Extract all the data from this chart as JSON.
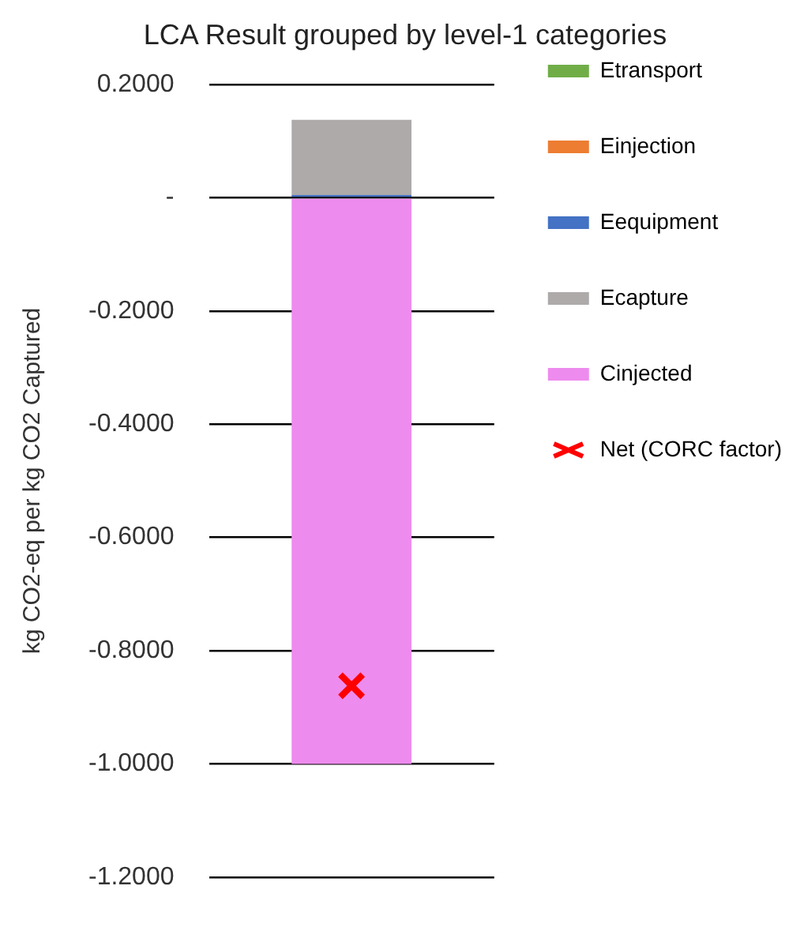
{
  "chart_data": {
    "type": "bar",
    "title": "LCA Result grouped by level-1 categories",
    "ylabel": "kg CO2-eq per kg CO2 Captured",
    "categories": [
      null
    ],
    "stacked": true,
    "series": [
      {
        "name": "Etransport",
        "color": "#70ad47",
        "values": [
          0
        ]
      },
      {
        "name": "Einjection",
        "color": "#ed7d31",
        "values": [
          0
        ]
      },
      {
        "name": "Eequipment",
        "color": "#4472c4",
        "values": [
          0.005
        ]
      },
      {
        "name": "Ecapture",
        "color": "#aeaaaa",
        "values": [
          0.133
        ]
      },
      {
        "name": "Cinjected",
        "color": "#ee8bee",
        "values": [
          -1.0
        ]
      },
      {
        "name": "Net (CORC factor)",
        "type": "scatter",
        "color": "#ff0000",
        "values": [
          -0.862
        ]
      }
    ],
    "ylim": [
      -1.2,
      0.2
    ],
    "yticks": [
      {
        "value": 0.2,
        "label": "0.2000"
      },
      {
        "value": 0,
        "label": "-"
      },
      {
        "value": -0.2,
        "label": "-0.2000"
      },
      {
        "value": -0.4,
        "label": "-0.4000"
      },
      {
        "value": -0.6,
        "label": "-0.6000"
      },
      {
        "value": -0.8,
        "label": "-0.8000"
      },
      {
        "value": -1.0,
        "label": "-1.0000"
      },
      {
        "value": -1.2,
        "label": "-1.2000"
      }
    ],
    "grid": "y",
    "legend": "right",
    "marker": "cross"
  }
}
